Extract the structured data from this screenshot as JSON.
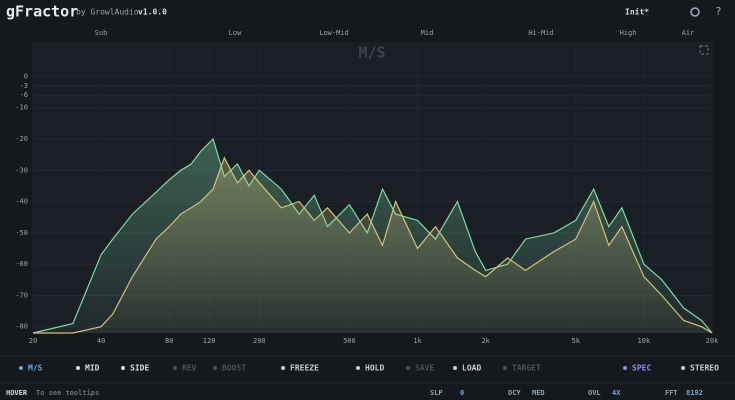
{
  "header": {
    "logo": "gFractor",
    "by": "by GrowlAudio",
    "version": "v1.0.0",
    "preset": "Init*",
    "help": "?"
  },
  "bands": [
    "Sub",
    "Low",
    "Low-Mid",
    "Mid",
    "Hi-Mid",
    "High",
    "Air"
  ],
  "chart_data": {
    "type": "line",
    "title": "M/S",
    "log_x": true,
    "fill": true,
    "x": [
      20,
      30,
      40,
      45,
      55,
      70,
      80,
      90,
      100,
      110,
      125,
      140,
      160,
      180,
      200,
      250,
      300,
      350,
      400,
      500,
      600,
      700,
      800,
      1000,
      1200,
      1500,
      1800,
      2000,
      2500,
      3000,
      4000,
      5000,
      6000,
      7000,
      8000,
      10000,
      12000,
      15000,
      18000,
      20000
    ],
    "series": [
      {
        "name": "MID",
        "color": "#7fd9a8",
        "values": [
          -82,
          -79,
          -57,
          -52,
          -44,
          -37,
          -33,
          -30,
          -28,
          -24,
          -20,
          -32,
          -28,
          -35,
          -30,
          -36,
          -44,
          -38,
          -48,
          -41,
          -50,
          -36,
          -44,
          -46,
          -52,
          -40,
          -56,
          -62,
          -60,
          -52,
          -50,
          -46,
          -36,
          -48,
          -42,
          -60,
          -65,
          -74,
          -78,
          -82
        ]
      },
      {
        "name": "SIDE",
        "color": "#d2c27a",
        "values": [
          -82,
          -82,
          -80,
          -76,
          -64,
          -52,
          -48,
          -44,
          -42,
          -40,
          -36,
          -26,
          -34,
          -30,
          -34,
          -42,
          -40,
          -46,
          -42,
          -50,
          -44,
          -54,
          -40,
          -55,
          -48,
          -58,
          -62,
          -64,
          -58,
          -62,
          -56,
          -52,
          -40,
          -54,
          -48,
          -64,
          -70,
          -78,
          -80,
          -82
        ]
      }
    ],
    "xlim": [
      20,
      20000
    ],
    "ylim": [
      -82,
      11
    ],
    "xticks": [
      20,
      40,
      80,
      120,
      200,
      500,
      {
        "value": 1000,
        "label": "1k"
      },
      {
        "value": 2000,
        "label": "2k"
      },
      {
        "value": 5000,
        "label": "5k"
      },
      {
        "value": 10000,
        "label": "10k"
      },
      {
        "value": 20000,
        "label": "20k"
      }
    ],
    "yticks": [
      0,
      -3,
      -6,
      -10,
      -20,
      -30,
      -40,
      -50,
      -60,
      -70,
      -80
    ],
    "grid": true
  },
  "toolbar": [
    "M/S",
    "MID",
    "SIDE",
    "REV",
    "BOOST",
    "FREEZE",
    "HOLD",
    "SAVE",
    "LOAD",
    "TARGET",
    "SPEC",
    "STEREO"
  ],
  "status": {
    "hover": "HOVER",
    "hint": "To see tooltips",
    "slp_label": "SLP",
    "slp": 0,
    "dcy_label": "DCY",
    "dcy": "MED",
    "ovl_label": "OVL",
    "ovl": "4X",
    "fft_label": "FFT",
    "fft": 8192
  }
}
